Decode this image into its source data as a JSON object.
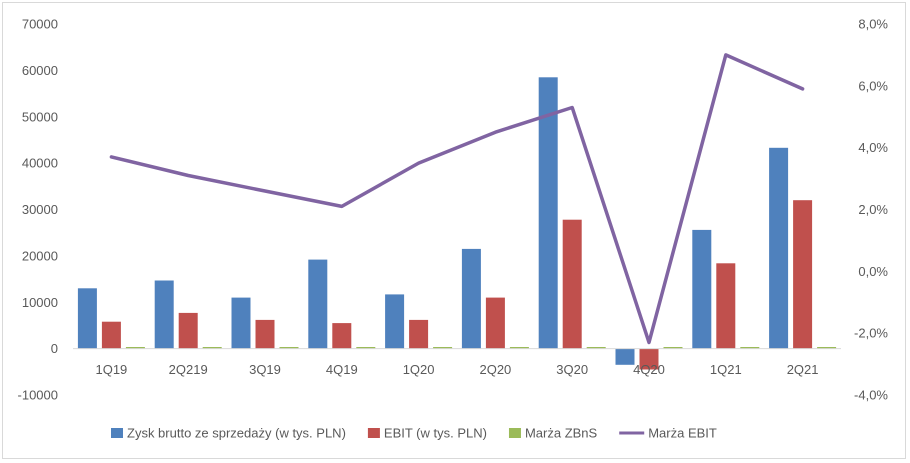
{
  "chart_data": {
    "type": "bar",
    "categories": [
      "1Q19",
      "2Q219",
      "3Q19",
      "4Q19",
      "1Q20",
      "2Q20",
      "3Q20",
      "4Q20",
      "1Q21",
      "2Q21"
    ],
    "y_left": {
      "ylim": [
        -10000,
        70000
      ],
      "ticks": [
        -10000,
        0,
        10000,
        20000,
        30000,
        40000,
        50000,
        60000,
        70000
      ],
      "tick_labels": [
        "-10000",
        "0",
        "10000",
        "20000",
        "30000",
        "40000",
        "50000",
        "60000",
        "70000"
      ]
    },
    "y_right": {
      "ylim": [
        -4.0,
        8.0
      ],
      "ticks": [
        -4,
        -2,
        0,
        2,
        4,
        6,
        8
      ],
      "tick_labels": [
        "-4,0%",
        "-2,0%",
        "0,0%",
        "2,0%",
        "4,0%",
        "6,0%",
        "8,0%"
      ]
    },
    "series": [
      {
        "name": "Zysk brutto ze sprzedaży (w tys. PLN)",
        "kind": "bar",
        "axis": "left",
        "color": "#4f81bd",
        "values": [
          13000,
          14700,
          11000,
          19200,
          11700,
          21500,
          58500,
          -3500,
          25600,
          43300
        ]
      },
      {
        "name": "EBIT (w tys. PLN)",
        "kind": "bar",
        "axis": "left",
        "color": "#c0504d",
        "values": [
          5800,
          7700,
          6200,
          5500,
          6200,
          11000,
          27800,
          -4500,
          18400,
          32000
        ]
      },
      {
        "name": "Marża ZBnS",
        "kind": "bar",
        "axis": "left",
        "color": "#9bbb59",
        "values": [
          300,
          300,
          300,
          300,
          300,
          300,
          300,
          300,
          300,
          300
        ]
      },
      {
        "name": "Marża EBIT",
        "kind": "line",
        "axis": "right",
        "color": "#8064a2",
        "values": [
          3.7,
          3.1,
          2.6,
          2.1,
          3.5,
          4.5,
          5.3,
          -2.3,
          7.0,
          5.9
        ]
      }
    ],
    "legend_position": "bottom",
    "grid": false
  }
}
